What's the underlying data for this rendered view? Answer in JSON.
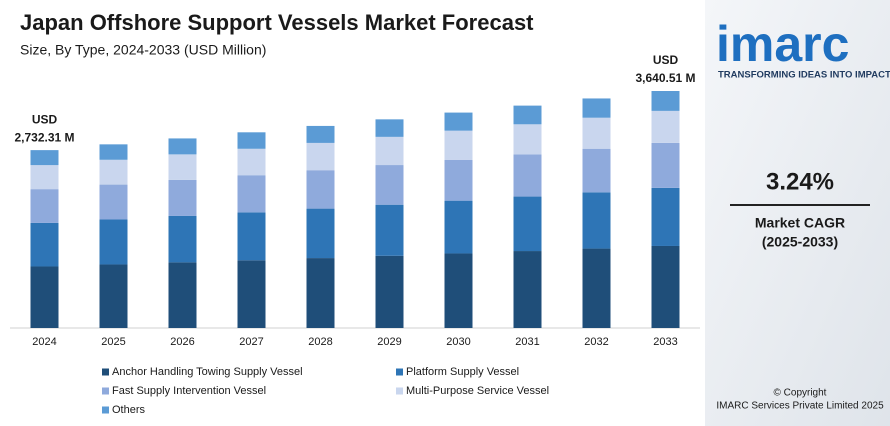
{
  "chart_data": {
    "type": "stacked_bar",
    "title": "Japan Offshore Support Vessels Market Forecast",
    "subtitle": "Size, By Type, 2024-2033 (USD Million)",
    "categories": [
      "2024",
      "2025",
      "2026",
      "2027",
      "2028",
      "2029",
      "2030",
      "2031",
      "2032",
      "2033"
    ],
    "series": [
      {
        "name": "Anchor Handling Towing Supply Vessel",
        "color": "#1f4e79",
        "values": [
          945,
          976,
          1008,
          1040,
          1074,
          1109,
          1145,
          1182,
          1220,
          1260
        ]
      },
      {
        "name": "Platform Supply Vessel",
        "color": "#2e75b6",
        "values": [
          669,
          691,
          713,
          736,
          760,
          785,
          811,
          837,
          864,
          892
        ]
      },
      {
        "name": "Fast Supply Intervention Vessel",
        "color": "#8faadc",
        "values": [
          519,
          536,
          553,
          571,
          590,
          609,
          628,
          649,
          670,
          692
        ]
      },
      {
        "name": "Multi-Purpose Service Vessel",
        "color": "#c9d6ee",
        "values": [
          369,
          381,
          393,
          406,
          419,
          433,
          447,
          461,
          476,
          491
        ]
      },
      {
        "name": "Others",
        "color": "#5b9bd5",
        "values": [
          230.31,
          237,
          245,
          253,
          261,
          269,
          278,
          287,
          296,
          305.51
        ]
      }
    ],
    "annotations": [
      {
        "category": "2024",
        "unit": "USD",
        "label": "2,732.31 M",
        "value": 2732.31
      },
      {
        "category": "2033",
        "unit": "USD",
        "label": "3,640.51 M",
        "value": 3640.51
      }
    ]
  },
  "brand": {
    "logo": "imarc",
    "tagline": "TRANSFORMING IDEAS INTO IMPACT",
    "cagr": "3.24%",
    "cagr_label": "Market CAGR",
    "cagr_period": "(2025-2033)",
    "copyright": "© Copyright",
    "company": "IMARC Services Private Limited 2025"
  }
}
